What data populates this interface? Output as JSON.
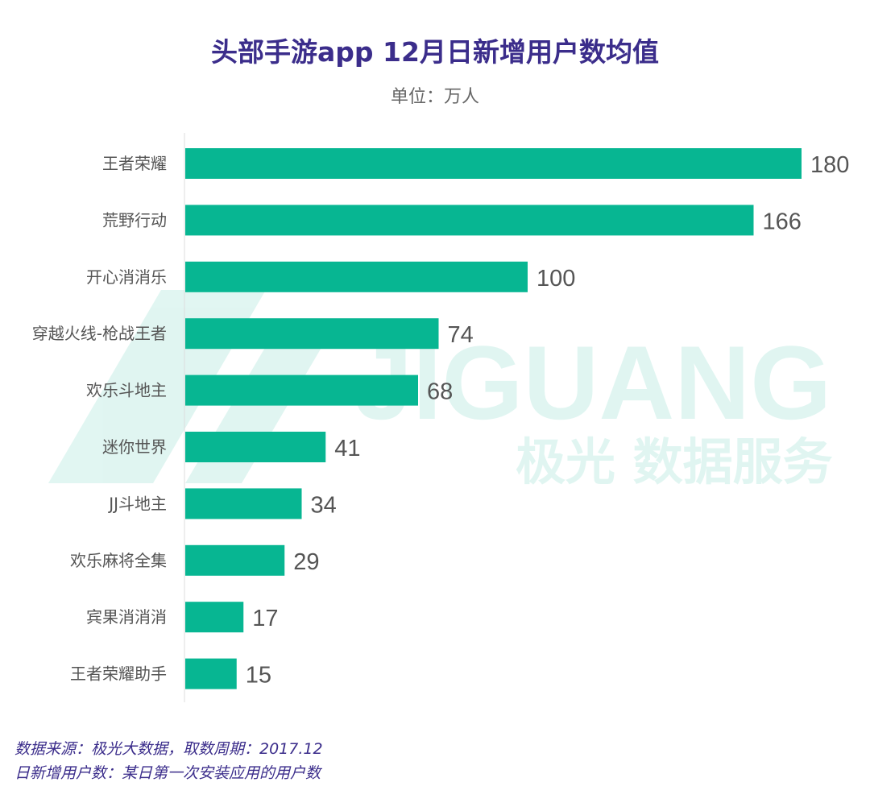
{
  "watermark": {
    "brand": "JIGUANG",
    "tagline": "极光 数据服务"
  },
  "chart_data": {
    "type": "bar",
    "orientation": "horizontal",
    "title": "头部手游app 12月日新增用户数均值",
    "subtitle": "单位：万人",
    "categories": [
      "王者荣耀",
      "荒野行动",
      "开心消消乐",
      "穿越火线-枪战王者",
      "欢乐斗地主",
      "迷你世界",
      "JJ斗地主",
      "欢乐麻将全集",
      "宾果消消消",
      "王者荣耀助手"
    ],
    "values": [
      180,
      166,
      100,
      74,
      68,
      41,
      34,
      29,
      17,
      15
    ],
    "xlim": [
      0,
      180
    ],
    "grid": false,
    "bar_color": "#07b692",
    "title_color": "#3b2d8b"
  },
  "footer": {
    "source": "数据来源：极光大数据，取数周期：2017.12",
    "definition": "日新增用户数：某日第一次安装应用的用户数"
  }
}
